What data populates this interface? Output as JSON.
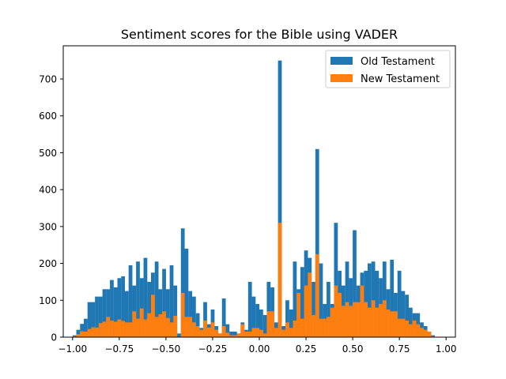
{
  "chart_data": {
    "type": "bar",
    "subtype": "overlaid-histogram",
    "title": "Sentiment scores for the Bible using VADER",
    "xlabel": "",
    "ylabel": "",
    "xlim": [
      -1.05,
      1.05
    ],
    "ylim": [
      0,
      790
    ],
    "xticks": [
      -1.0,
      -0.75,
      -0.5,
      -0.25,
      0.0,
      0.25,
      0.5,
      0.75,
      1.0
    ],
    "xtick_labels": [
      "−1.00",
      "−0.75",
      "−0.50",
      "−0.25",
      "0.00",
      "0.25",
      "0.50",
      "0.75",
      "1.00"
    ],
    "yticks": [
      0,
      100,
      200,
      300,
      400,
      500,
      600,
      700
    ],
    "ytick_labels": [
      "0",
      "100",
      "200",
      "300",
      "400",
      "500",
      "600",
      "700"
    ],
    "grid": false,
    "legend_position": "top-right",
    "bins": {
      "start": -1.0,
      "end": 1.0,
      "count": 100
    },
    "series": [
      {
        "name": "Old Testament",
        "color": "#1f77b4",
        "values": [
          5,
          20,
          36,
          50,
          95,
          95,
          110,
          110,
          130,
          130,
          155,
          135,
          160,
          165,
          125,
          195,
          140,
          205,
          160,
          215,
          150,
          175,
          205,
          130,
          185,
          130,
          195,
          140,
          10,
          295,
          240,
          125,
          110,
          65,
          25,
          95,
          35,
          75,
          30,
          10,
          105,
          35,
          15,
          15,
          10,
          40,
          20,
          150,
          110,
          90,
          75,
          60,
          150,
          135,
          40,
          750,
          30,
          100,
          75,
          205,
          130,
          190,
          235,
          215,
          150,
          510,
          200,
          90,
          150,
          90,
          310,
          180,
          140,
          205,
          160,
          290,
          140,
          175,
          180,
          200,
          205,
          180,
          160,
          205,
          130,
          210,
          120,
          180,
          125,
          115,
          80,
          65,
          65,
          40,
          30,
          15,
          5,
          0,
          0,
          0
        ]
      },
      {
        "name": "New Testament",
        "color": "#ff7f0e",
        "values": [
          2,
          8,
          16,
          15,
          22,
          27,
          26,
          38,
          42,
          55,
          45,
          42,
          48,
          44,
          40,
          40,
          70,
          50,
          78,
          48,
          65,
          115,
          55,
          62,
          70,
          52,
          40,
          58,
          0,
          120,
          55,
          55,
          40,
          30,
          20,
          45,
          26,
          40,
          20,
          10,
          30,
          12,
          5,
          5,
          10,
          35,
          15,
          15,
          25,
          25,
          20,
          10,
          70,
          70,
          25,
          310,
          20,
          40,
          25,
          45,
          120,
          50,
          140,
          175,
          60,
          225,
          50,
          50,
          55,
          80,
          140,
          120,
          85,
          95,
          85,
          95,
          95,
          140,
          95,
          80,
          100,
          80,
          90,
          100,
          75,
          70,
          70,
          50,
          50,
          45,
          35,
          45,
          35,
          25,
          20,
          15,
          2,
          0,
          0,
          0
        ]
      }
    ]
  }
}
